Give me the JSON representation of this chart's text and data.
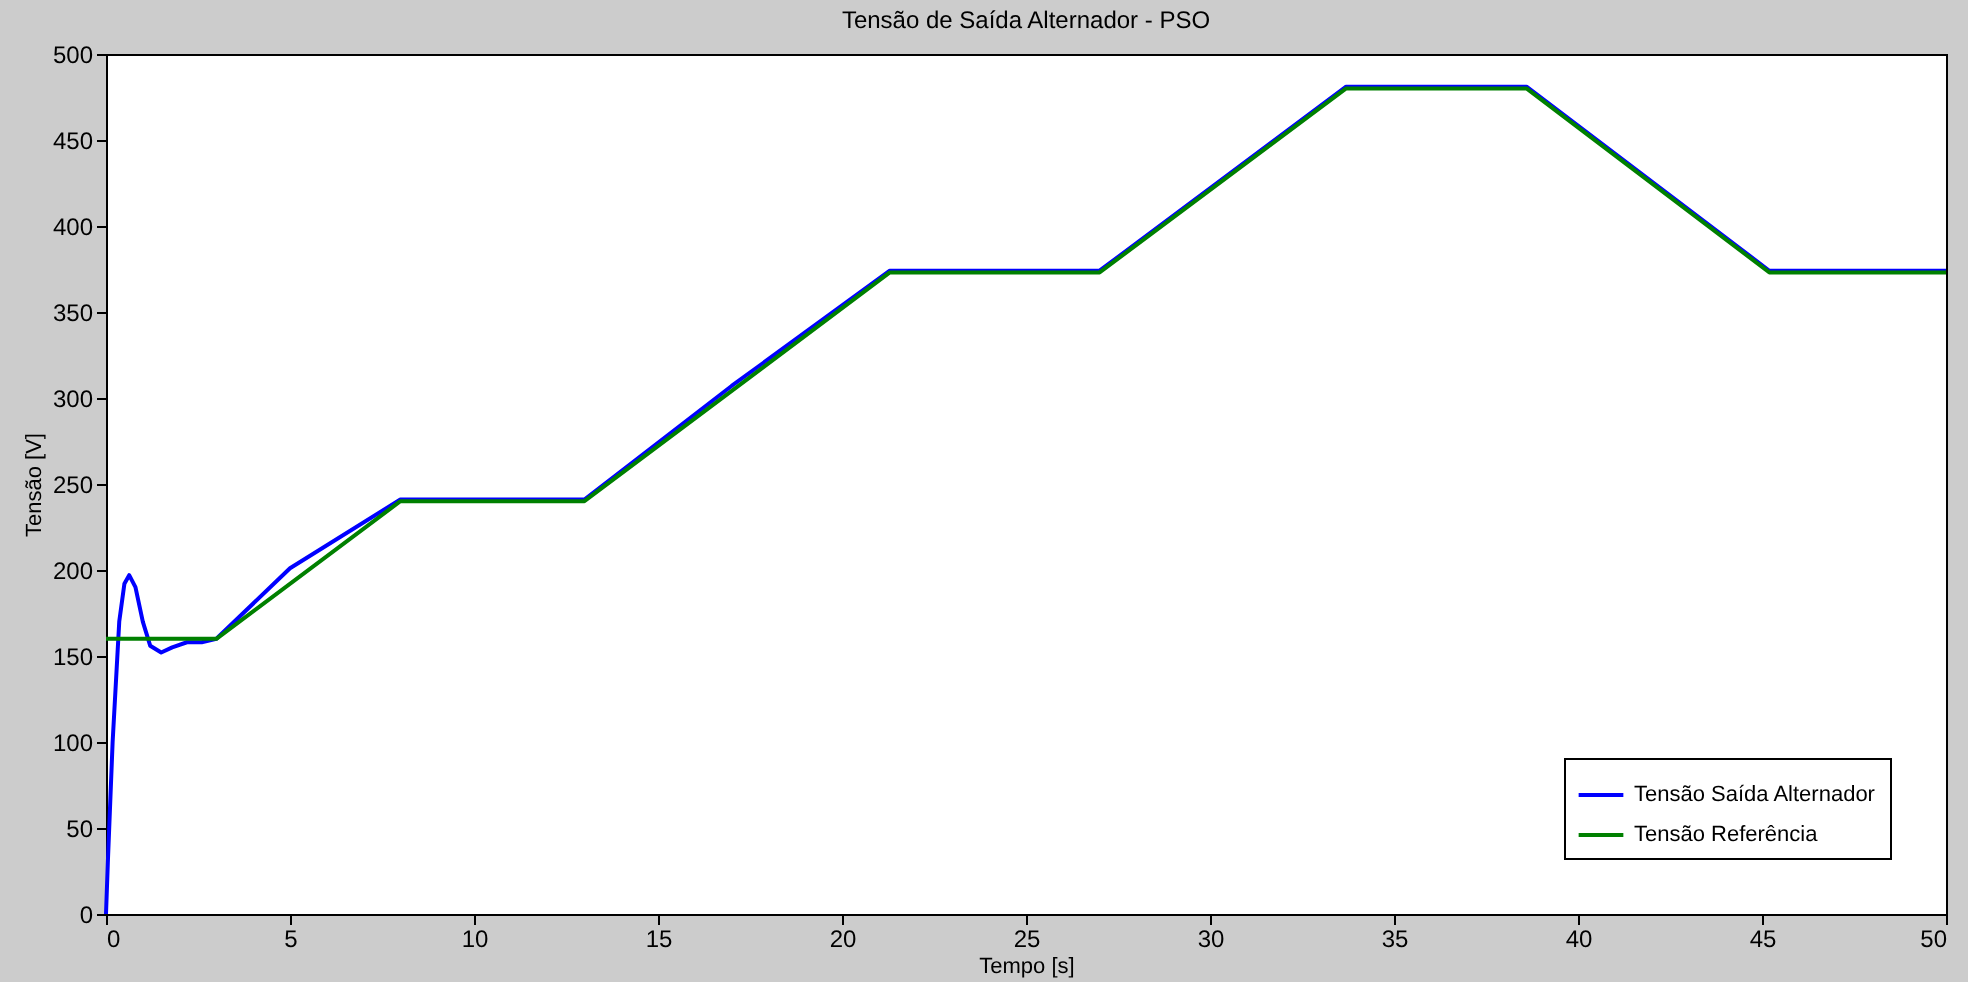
{
  "chart_data": {
    "type": "line",
    "title": "Tensão de Saída Alternador - PSO",
    "xlabel": "Tempo [s]",
    "ylabel": "Tensão [V]",
    "xlim": [
      0,
      50
    ],
    "ylim": [
      0,
      500
    ],
    "xticks": [
      0,
      5,
      10,
      15,
      20,
      25,
      30,
      35,
      40,
      45,
      50
    ],
    "yticks": [
      0,
      50,
      100,
      150,
      200,
      250,
      300,
      350,
      400,
      450,
      500
    ],
    "grid": false,
    "legend": "bottom right",
    "line_style": "solid",
    "marker": "none",
    "series": [
      {
        "name": "Tensão Saída Alternador",
        "color": "#0000ff",
        "x": [
          0,
          0.05,
          0.18,
          0.36,
          0.5,
          0.63,
          0.8,
          1.0,
          1.2,
          1.5,
          1.8,
          2.2,
          2.6,
          3.0,
          5,
          8,
          13,
          17,
          21.3,
          27,
          33.7,
          38.6,
          45.2,
          50
        ],
        "values": [
          0,
          30,
          100,
          170,
          192,
          197,
          190,
          170,
          156,
          152,
          155,
          158,
          158,
          160,
          201,
          241,
          241,
          307,
          374,
          374,
          481,
          481,
          374,
          374
        ]
      },
      {
        "name": "Tensão Referência",
        "color": "#008000",
        "x": [
          0,
          3,
          8,
          13,
          21.3,
          27,
          33.7,
          38.6,
          45.2,
          50
        ],
        "values": [
          160,
          160,
          240,
          240,
          373,
          373,
          480,
          480,
          373,
          373
        ]
      }
    ]
  }
}
